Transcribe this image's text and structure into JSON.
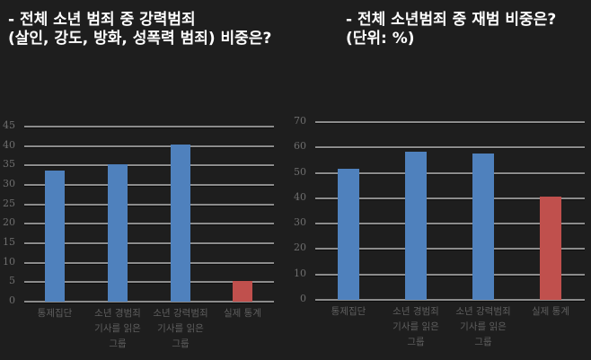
{
  "titles": {
    "left": "- 전체 소년 범죄 중 강력범죄\n(살인, 강도, 방화, 성폭력 범죄) 비중은?",
    "right": "- 전체 소년범죄 중 재범 비중은?\n(단위: %)"
  },
  "colors": {
    "background": "#1e1e1e",
    "bar_blue": "#4f81bd",
    "bar_red": "#c0504d",
    "gridline": "#8c8c8c",
    "tick_text": "#6e6e6e"
  },
  "chart_data": [
    {
      "type": "bar",
      "title": "- 전체 소년 범죄 중 강력범죄 (살인, 강도, 방화, 성폭력 범죄) 비중은?",
      "categories": [
        "통제집단",
        "소년 경범죄 기사를 읽은 그룹",
        "소년 강력범죄 기사를 읽은 그룹",
        "실제 통계"
      ],
      "values": [
        33.7,
        35.4,
        40.4,
        5.3
      ],
      "bar_colors": [
        "#4f81bd",
        "#4f81bd",
        "#4f81bd",
        "#c0504d"
      ],
      "xlabel": "",
      "ylabel": "",
      "ylim": [
        0,
        45
      ],
      "yticks": [
        0,
        5,
        10,
        15,
        20,
        25,
        30,
        35,
        40,
        45
      ],
      "grid": true,
      "legend": "none"
    },
    {
      "type": "bar",
      "title": "- 전체 소년범죄 중 재범 비중은? (단위: %)",
      "categories": [
        "통제집단",
        "소년 경범죄 기사를 읽은 그룹",
        "소년 강력범죄 기사를 읽은 그룹",
        "실제 통계"
      ],
      "values": [
        51.6,
        58.2,
        57.8,
        40.6
      ],
      "bar_colors": [
        "#4f81bd",
        "#4f81bd",
        "#4f81bd",
        "#c0504d"
      ],
      "xlabel": "",
      "ylabel": "",
      "ylim": [
        0,
        70
      ],
      "yticks": [
        0,
        10,
        20,
        30,
        40,
        50,
        60,
        70
      ],
      "grid": true,
      "legend": "none"
    }
  ],
  "left_chart": {
    "yticks": [
      "45",
      "40",
      "35",
      "30",
      "25",
      "20",
      "15",
      "10",
      "5",
      "0"
    ],
    "xlabels": [
      "통제집단",
      "소년 경범죄\n기사를 읽은\n그룹",
      "소년 강력범죄\n기사를 읽은\n그룹",
      "실제 통계"
    ]
  },
  "right_chart": {
    "yticks": [
      "70",
      "60",
      "50",
      "40",
      "30",
      "20",
      "10",
      "0"
    ],
    "xlabels": [
      "통제집단",
      "소년 경범죄\n기사를 읽은\n그룹",
      "소년 강력범죄\n기사를 읽은\n그룹",
      "실제 통계"
    ]
  }
}
